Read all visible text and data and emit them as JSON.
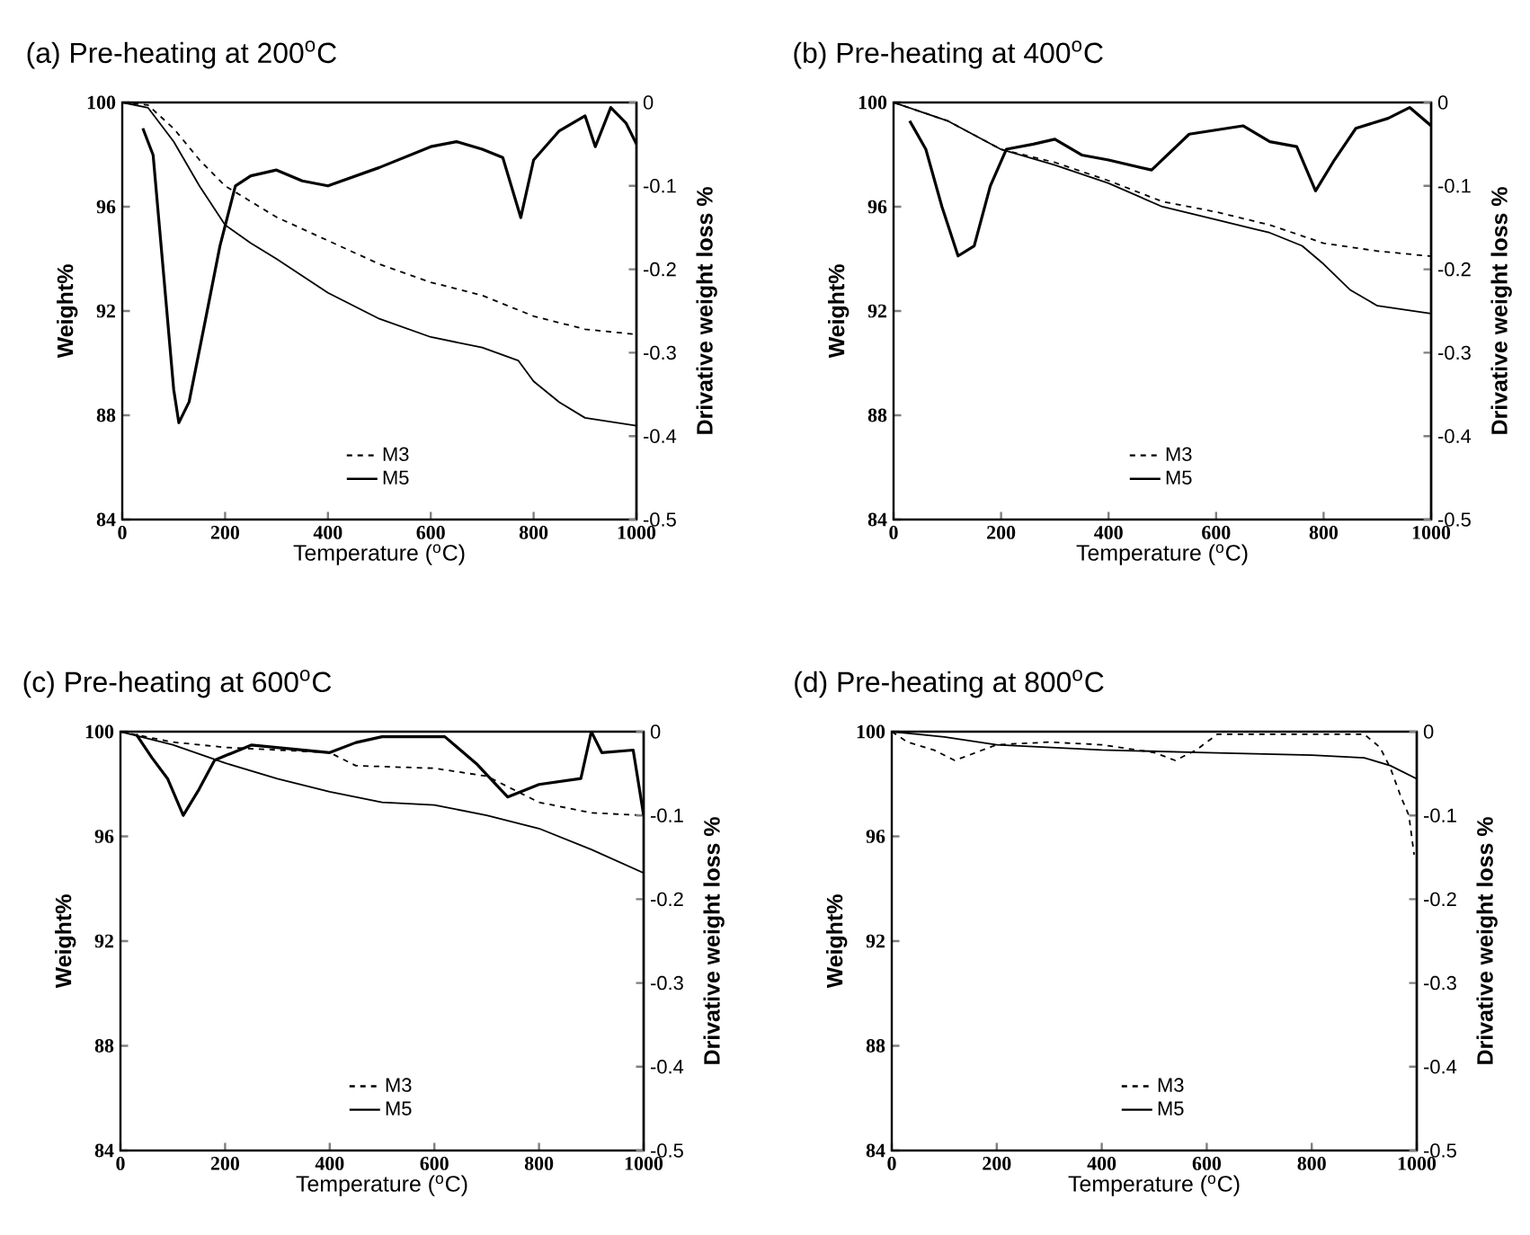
{
  "chart_data": [
    {
      "type": "line",
      "title": "(a) Pre-heating at 200$^{o}$C",
      "xlabel": "Temperature ($^{o}$C)",
      "ylabel": "Weight%",
      "y2label": "Drivative weight loss %",
      "xlim": [
        0,
        1000
      ],
      "ylim": [
        84,
        100
      ],
      "y2lim": [
        -0.5,
        0
      ],
      "xticks": [
        0,
        200,
        400,
        600,
        800,
        1000
      ],
      "yticks": [
        84,
        88,
        92,
        96,
        100
      ],
      "y2ticks": [
        -0.5,
        -0.4,
        -0.3,
        -0.2,
        -0.1,
        0
      ],
      "legend": "bottom",
      "series": [
        {
          "name": "M3",
          "color": "#000000",
          "line_style": "dashed",
          "x": [
            0,
            50,
            100,
            150,
            200,
            300,
            400,
            500,
            600,
            700,
            800,
            900,
            1000
          ],
          "values": [
            100,
            99.9,
            99,
            97.8,
            96.8,
            95.6,
            94.7,
            93.8,
            93.1,
            92.6,
            91.8,
            91.3,
            91.1
          ]
        },
        {
          "name": "M5",
          "color": "#000000",
          "line_style": "solid",
          "x": [
            0,
            50,
            100,
            150,
            200,
            250,
            300,
            400,
            500,
            600,
            700,
            770,
            800,
            850,
            900,
            1000
          ],
          "values": [
            100,
            99.8,
            98.5,
            96.8,
            95.3,
            94.6,
            94,
            92.7,
            91.7,
            91,
            90.6,
            90.1,
            89.3,
            88.5,
            87.9,
            87.6
          ]
        },
        {
          "color": "#000000",
          "line_style": "solid",
          "axis": "y2",
          "x": [
            40,
            60,
            80,
            100,
            110,
            130,
            160,
            190,
            220,
            250,
            300,
            350,
            400,
            500,
            600,
            650,
            700,
            740,
            775,
            800,
            850,
            900,
            920,
            950,
            980,
            1000
          ],
          "values": [
            -0.031,
            -0.063,
            -0.203,
            -0.344,
            -0.384,
            -0.359,
            -0.266,
            -0.172,
            -0.1,
            -0.088,
            -0.081,
            -0.094,
            -0.1,
            -0.078,
            -0.053,
            -0.047,
            -0.056,
            -0.066,
            -0.138,
            -0.069,
            -0.034,
            -0.016,
            -0.053,
            -0.006,
            -0.025,
            -0.05
          ]
        }
      ]
    },
    {
      "type": "line",
      "title": "(b) Pre-heating at 400$^{o}$C",
      "xlabel": "Temperature ($^{o}$C)",
      "ylabel": "Weight%",
      "y2label": "Drivative weight loss %",
      "xlim": [
        0,
        1000
      ],
      "ylim": [
        84,
        100
      ],
      "y2lim": [
        -0.5,
        0
      ],
      "xticks": [
        0,
        200,
        400,
        600,
        800,
        1000
      ],
      "yticks": [
        84,
        88,
        92,
        96,
        100
      ],
      "y2ticks": [
        -0.5,
        -0.4,
        -0.3,
        -0.2,
        -0.1,
        0
      ],
      "legend": "bottom",
      "series": [
        {
          "name": "M3",
          "color": "#000000",
          "line_style": "dashed",
          "x": [
            0,
            100,
            200,
            300,
            400,
            500,
            600,
            700,
            800,
            900,
            1000
          ],
          "values": [
            100,
            99.3,
            98.2,
            97.7,
            97,
            96.2,
            95.8,
            95.3,
            94.6,
            94.3,
            94.1
          ]
        },
        {
          "name": "M5",
          "color": "#000000",
          "line_style": "solid",
          "x": [
            0,
            100,
            200,
            300,
            400,
            500,
            600,
            700,
            760,
            800,
            850,
            900,
            1000
          ],
          "values": [
            100,
            99.3,
            98.2,
            97.6,
            96.9,
            96,
            95.5,
            95,
            94.5,
            93.8,
            92.8,
            92.2,
            91.9
          ]
        },
        {
          "color": "#000000",
          "line_style": "solid",
          "axis": "y2",
          "x": [
            30,
            60,
            90,
            120,
            150,
            180,
            210,
            260,
            300,
            350,
            400,
            480,
            550,
            650,
            700,
            750,
            785,
            820,
            860,
            920,
            960,
            1000
          ],
          "values": [
            -0.022,
            -0.056,
            -0.125,
            -0.184,
            -0.172,
            -0.1,
            -0.056,
            -0.05,
            -0.044,
            -0.063,
            -0.069,
            -0.081,
            -0.038,
            -0.028,
            -0.047,
            -0.053,
            -0.106,
            -0.069,
            -0.031,
            -0.019,
            -0.006,
            -0.028
          ]
        }
      ]
    },
    {
      "type": "line",
      "title": "(c) Pre-heating at 600$^{o}$C",
      "xlabel": "Temperature ($^{o}$C)",
      "ylabel": "Weight%",
      "y2label": "Drivative weight loss %",
      "xlim": [
        0,
        1000
      ],
      "ylim": [
        84,
        100
      ],
      "y2lim": [
        -0.5,
        0
      ],
      "xticks": [
        0,
        200,
        400,
        600,
        800,
        1000
      ],
      "yticks": [
        84,
        88,
        92,
        96,
        100
      ],
      "y2ticks": [
        -0.5,
        -0.4,
        -0.3,
        -0.2,
        -0.1,
        0
      ],
      "legend": "bottom",
      "series": [
        {
          "name": "M3",
          "color": "#000000",
          "line_style": "dashed",
          "x": [
            0,
            100,
            200,
            400,
            450,
            600,
            700,
            800,
            900,
            1000
          ],
          "values": [
            100,
            99.6,
            99.4,
            99.2,
            98.7,
            98.6,
            98.3,
            97.3,
            96.9,
            96.8
          ]
        },
        {
          "name": "M5",
          "color": "#000000",
          "line_style": "solid",
          "x": [
            0,
            100,
            200,
            300,
            400,
            500,
            600,
            700,
            800,
            900,
            1000
          ],
          "values": [
            100,
            99.5,
            98.8,
            98.2,
            97.7,
            97.3,
            97.2,
            96.8,
            96.3,
            95.5,
            94.6
          ]
        },
        {
          "color": "#000000",
          "line_style": "solid",
          "axis": "y2",
          "x": [
            30,
            60,
            90,
            120,
            150,
            180,
            250,
            400,
            450,
            500,
            620,
            680,
            740,
            800,
            880,
            900,
            920,
            980,
            1000
          ],
          "values": [
            -0.003,
            -0.031,
            -0.056,
            -0.1,
            -0.069,
            -0.034,
            -0.016,
            -0.025,
            -0.013,
            -0.006,
            -0.006,
            -0.038,
            -0.078,
            -0.063,
            -0.056,
            0,
            -0.025,
            -0.022,
            -0.1
          ]
        }
      ]
    },
    {
      "type": "line",
      "title": "(d) Pre-heating at 800$^{o}$C",
      "xlabel": "Temperature ($^{o}$C)",
      "ylabel": "Weight%",
      "y2label": "Drivative weight loss %",
      "xlim": [
        0,
        1000
      ],
      "ylim": [
        84,
        100
      ],
      "y2lim": [
        -0.5,
        0
      ],
      "xticks": [
        0,
        200,
        400,
        600,
        800,
        1000
      ],
      "yticks": [
        84,
        88,
        92,
        96,
        100
      ],
      "y2ticks": [
        -0.5,
        -0.4,
        -0.3,
        -0.2,
        -0.1,
        0
      ],
      "legend": "bottom",
      "series": [
        {
          "name": "M3",
          "color": "#000000",
          "line_style": "dashed",
          "x": [
            0,
            30,
            80,
            120,
            160,
            200,
            300,
            400,
            500,
            540,
            580,
            620,
            700,
            800,
            900,
            930,
            950,
            970,
            985,
            995
          ],
          "values": [
            100,
            99.6,
            99.3,
            98.9,
            99.2,
            99.5,
            99.6,
            99.5,
            99.2,
            98.9,
            99.3,
            99.9,
            99.9,
            99.9,
            99.9,
            99.4,
            98.6,
            97.5,
            96.8,
            95.3
          ]
        },
        {
          "name": "M5",
          "color": "#000000",
          "line_style": "solid",
          "x": [
            0,
            100,
            200,
            400,
            600,
            800,
            900,
            950,
            1000
          ],
          "values": [
            100,
            99.8,
            99.5,
            99.3,
            99.2,
            99.1,
            99,
            98.7,
            98.2
          ]
        }
      ]
    }
  ]
}
